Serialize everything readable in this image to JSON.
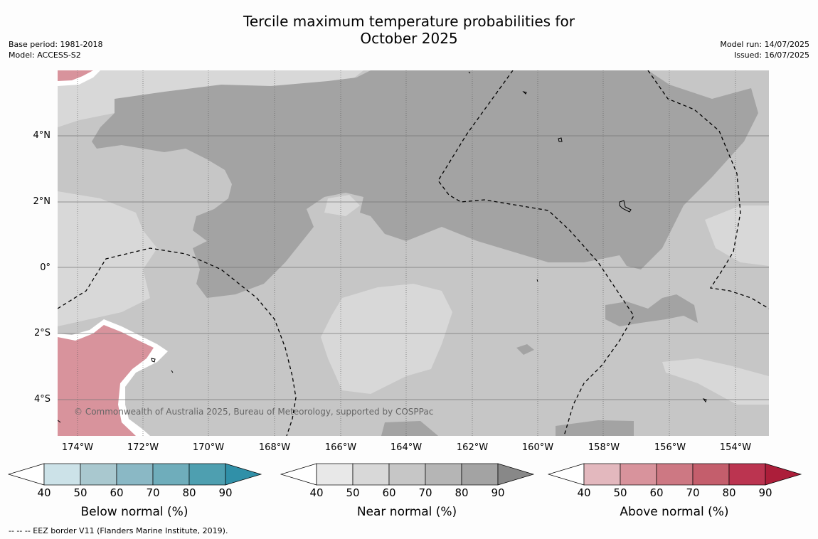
{
  "header": {
    "title_line1": "Tercile maximum temperature probabilities for",
    "title_line2": "October 2025",
    "base_period": "Base period: 1981-2018",
    "model": "Model: ACCESS-S2",
    "model_run": "Model run: 14/07/2025",
    "issued": "Issued: 16/07/2025"
  },
  "map": {
    "lat_labels": [
      "4°N",
      "2°N",
      "0°",
      "2°S",
      "4°S"
    ],
    "lon_labels": [
      "174°W",
      "172°W",
      "170°W",
      "168°W",
      "166°W",
      "164°W",
      "162°W",
      "160°W",
      "158°W",
      "156°W",
      "154°W"
    ],
    "copyright": "© Commonwealth of Australia 2025, Bureau of Meteorology, supported by COSPPac"
  },
  "colors": {
    "below": [
      "#cce2e8",
      "#a9c8cf",
      "#8ab8c5",
      "#6fadbb",
      "#4e9fb0",
      "#3090a8"
    ],
    "near": [
      "#e8e8e8",
      "#d8d8d8",
      "#c6c6c6",
      "#b5b5b5",
      "#a3a3a3",
      "#888888"
    ],
    "above": [
      "#e3b8be",
      "#d8939c",
      "#cd7883",
      "#c45e6c",
      "#bb3450",
      "#ac1e3a"
    ]
  },
  "colorbars": [
    {
      "title": "Below normal (%)",
      "ticks": [
        "40",
        "50",
        "60",
        "70",
        "80",
        "90"
      ]
    },
    {
      "title": "Near normal (%)",
      "ticks": [
        "40",
        "50",
        "60",
        "70",
        "80",
        "90"
      ]
    },
    {
      "title": "Above normal (%)",
      "ticks": [
        "40",
        "50",
        "60",
        "70",
        "80",
        "90"
      ]
    }
  ],
  "footnote": "--  --  -- EEZ border V11 (Flanders Marine Institute, 2019)."
}
